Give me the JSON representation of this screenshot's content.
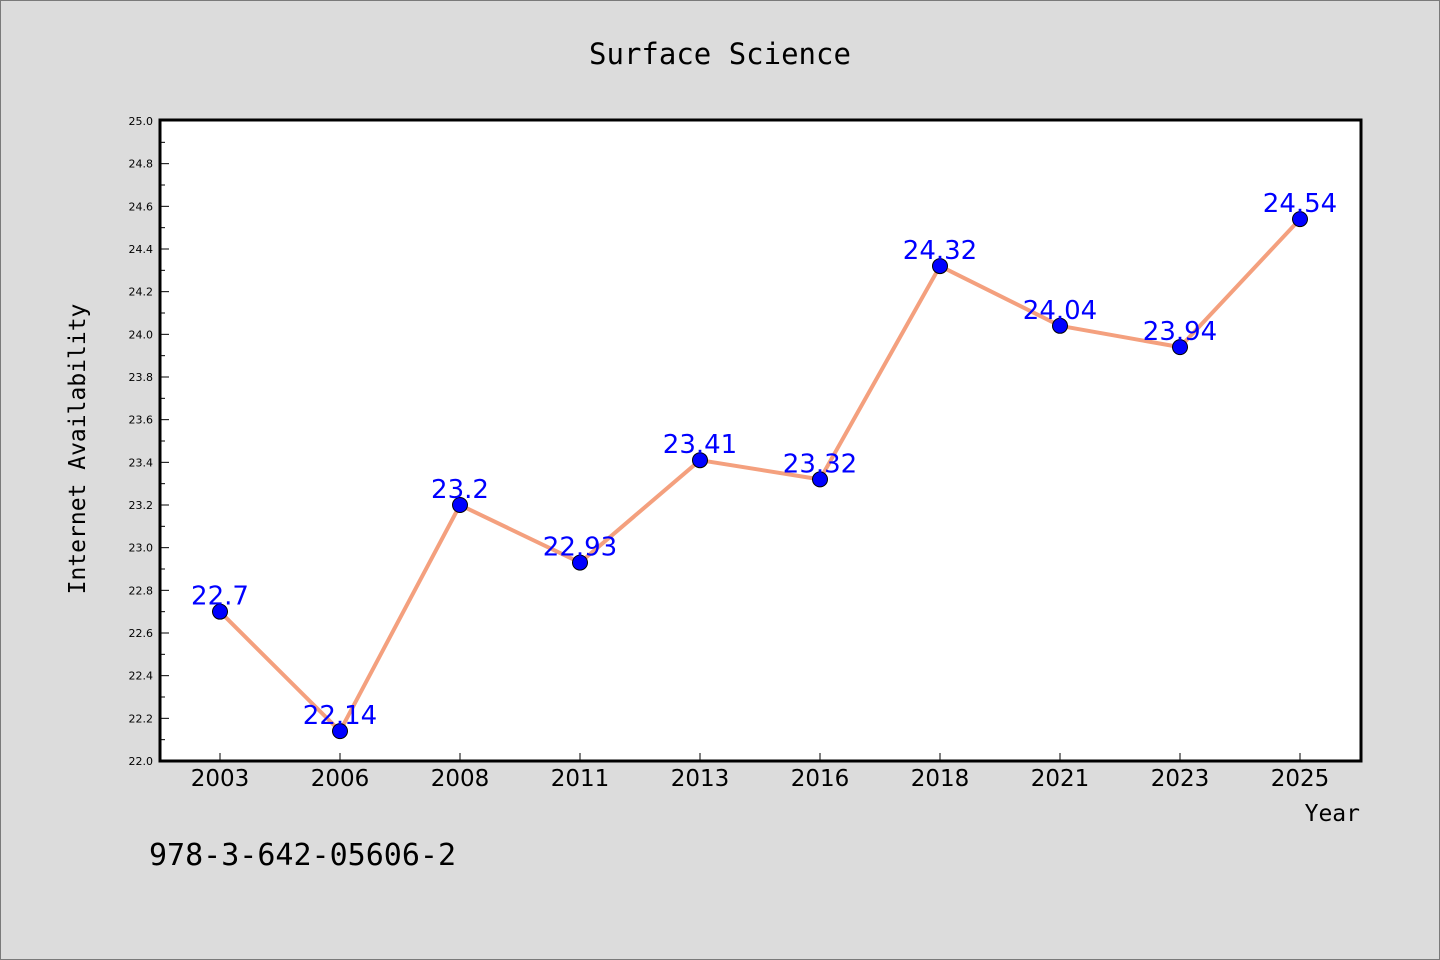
{
  "chart_data": {
    "type": "line",
    "title": "Surface Science",
    "xlabel": "Year",
    "ylabel": "Internet Availability",
    "categories": [
      "2003",
      "2006",
      "2008",
      "2011",
      "2013",
      "2016",
      "2018",
      "2021",
      "2023",
      "2025"
    ],
    "series": [
      {
        "values": [
          22.7,
          22.14,
          23.2,
          22.93,
          23.41,
          23.32,
          24.32,
          24.04,
          23.94,
          24.54
        ],
        "labels": [
          "22.7",
          "22.14",
          "23.2",
          "22.93",
          "23.41",
          "23.32",
          "24.32",
          "24.04",
          "23.94",
          "24.54"
        ],
        "line_color": "#f4a07e",
        "marker_color": "#0000ff",
        "label_color": "#0000ff"
      }
    ],
    "ylim": [
      22.0,
      25.0
    ],
    "y_ticks": [
      "22.0",
      "22.2",
      "22.4",
      "22.6",
      "22.8",
      "23.0",
      "23.2",
      "23.4",
      "23.6",
      "23.8",
      "24.0",
      "24.2",
      "24.4",
      "24.6",
      "24.8",
      "25.0"
    ],
    "grid": false,
    "legend": "none"
  },
  "footnote": "978-3-642-05606-2",
  "colors": {
    "background": "#dcdcdc",
    "plot_background": "#ffffff",
    "frame": "#000000"
  }
}
